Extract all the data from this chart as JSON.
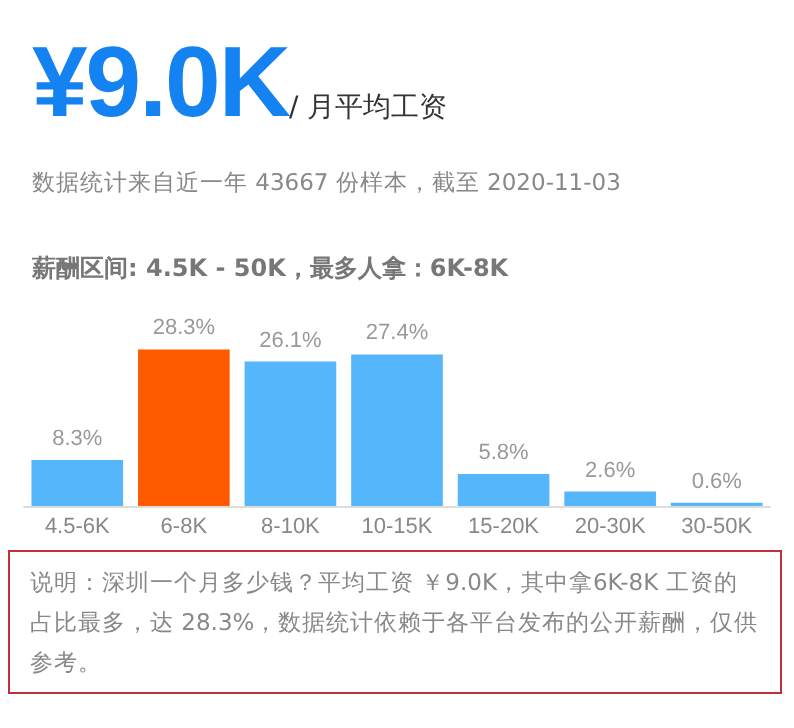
{
  "chart_data": {
    "type": "bar",
    "title": "¥9.0K",
    "subtitle": "/ 月平均工资",
    "annotations": [
      "数据统计来自近一年 43667 份样本，截至 2020-11-03",
      "薪酬区间: 4.5K - 50K，最多人拿：6K-8K",
      "说明：深圳一个月多少钱？平均工资 ￥9.0K，其中拿6K-8K 工资的占比最多，达 28.3%，数据统计依赖于各平台发布的公开薪酬，仅供参考。"
    ],
    "categories": [
      "4.5-6K",
      "6-8K",
      "8-10K",
      "10-15K",
      "15-20K",
      "20-30K",
      "30-50K"
    ],
    "values": [
      8.3,
      28.3,
      26.1,
      27.4,
      5.8,
      2.6,
      0.6
    ],
    "value_labels": [
      "8.3%",
      "28.3%",
      "26.1%",
      "27.4%",
      "5.8%",
      "2.6%",
      "0.6%"
    ],
    "colors": [
      "#55b6fb",
      "#ff5a00",
      "#55b6fb",
      "#55b6fb",
      "#55b6fb",
      "#55b6fb",
      "#55b6fb"
    ]
  }
}
